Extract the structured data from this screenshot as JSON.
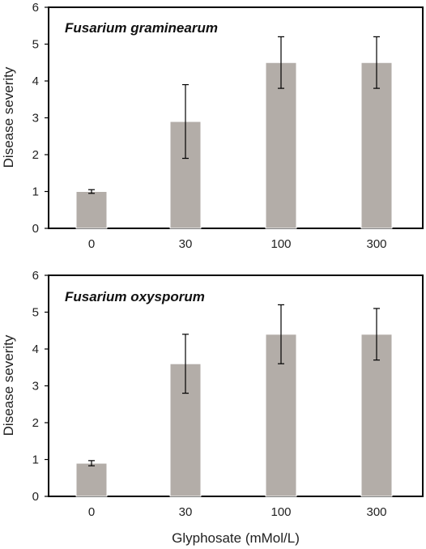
{
  "chart_data": [
    {
      "type": "bar",
      "title": "Fusarium graminearum",
      "categories": [
        "0",
        "30",
        "100",
        "300"
      ],
      "values": [
        1.0,
        2.9,
        4.5,
        4.5
      ],
      "error": [
        0.05,
        1.0,
        0.7,
        0.7
      ],
      "ylabel": "Disease severity",
      "xlabel": "",
      "ylim": [
        0,
        6
      ],
      "yticks": [
        0,
        1,
        2,
        3,
        4,
        5,
        6
      ],
      "bar_color": "#b3ada8",
      "grid": false
    },
    {
      "type": "bar",
      "title": "Fusarium oxysporum",
      "categories": [
        "0",
        "30",
        "100",
        "300"
      ],
      "values": [
        0.9,
        3.6,
        4.4,
        4.4
      ],
      "error": [
        0.07,
        0.8,
        0.8,
        0.7
      ],
      "ylabel": "Disease severity",
      "xlabel": "Glyphosate (mMol/L)",
      "ylim": [
        0,
        6
      ],
      "yticks": [
        0,
        1,
        2,
        3,
        4,
        5,
        6
      ],
      "bar_color": "#b3ada8",
      "grid": false
    }
  ]
}
